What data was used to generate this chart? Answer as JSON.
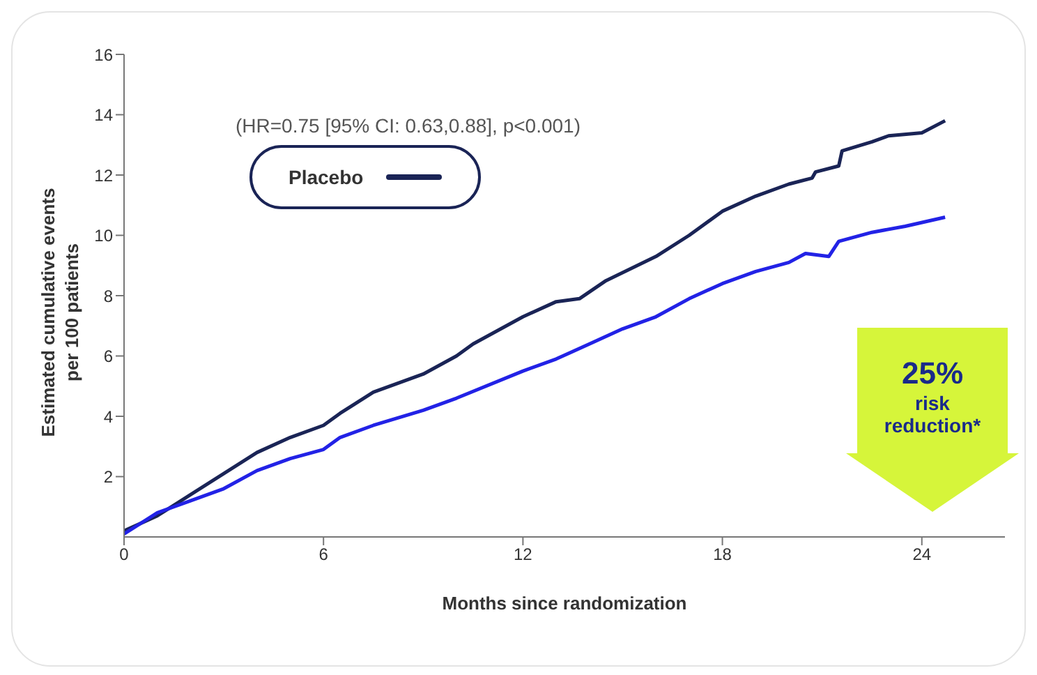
{
  "chart_data": {
    "type": "line",
    "xlabel": "Months since randomization",
    "ylabel": "Estimated cumulative events per 100 patients",
    "annotations": [
      "(HR=0.75 [95% CI: 0.63,0.88], p<0.001)",
      "25% risk reduction*"
    ],
    "xlim": [
      0,
      26.5
    ],
    "xticks": [
      0,
      6,
      12,
      18,
      24
    ],
    "ylim": [
      0,
      16
    ],
    "yticks": [
      2,
      4,
      6,
      8,
      10,
      12,
      14,
      16
    ],
    "grid": false,
    "legend": "top left",
    "marker": "none",
    "line_style": "solid",
    "series": [
      {
        "name": "Placebo",
        "color": "#1a2456",
        "x": [
          0,
          1,
          2,
          3,
          4,
          5,
          6,
          6.5,
          7.5,
          9,
          10,
          10.5,
          12,
          13,
          13.7,
          14.5,
          16,
          17,
          18,
          19,
          20,
          20.7,
          20.8,
          21.5,
          21.6,
          22.5,
          23,
          24,
          24.7
        ],
        "values": [
          0.2,
          0.7,
          1.4,
          2.1,
          2.8,
          3.3,
          3.7,
          4.1,
          4.8,
          5.4,
          6.0,
          6.4,
          7.3,
          7.8,
          7.9,
          8.5,
          9.3,
          10.0,
          10.8,
          11.3,
          11.7,
          11.9,
          12.1,
          12.3,
          12.8,
          13.1,
          13.3,
          13.4,
          13.8
        ]
      },
      {
        "color": "#2222e6",
        "x": [
          0,
          1,
          2,
          3,
          4,
          5,
          6,
          6.5,
          7.5,
          9,
          10,
          12,
          13,
          14,
          15,
          16,
          17,
          18,
          19,
          20,
          20.5,
          21.2,
          21.5,
          22.5,
          23.5,
          24.7
        ],
        "values": [
          0.1,
          0.8,
          1.2,
          1.6,
          2.2,
          2.6,
          2.9,
          3.3,
          3.7,
          4.2,
          4.6,
          5.5,
          5.9,
          6.4,
          6.9,
          7.3,
          7.9,
          8.4,
          8.8,
          9.1,
          9.4,
          9.3,
          9.8,
          10.1,
          10.3,
          10.6
        ]
      }
    ]
  }
}
